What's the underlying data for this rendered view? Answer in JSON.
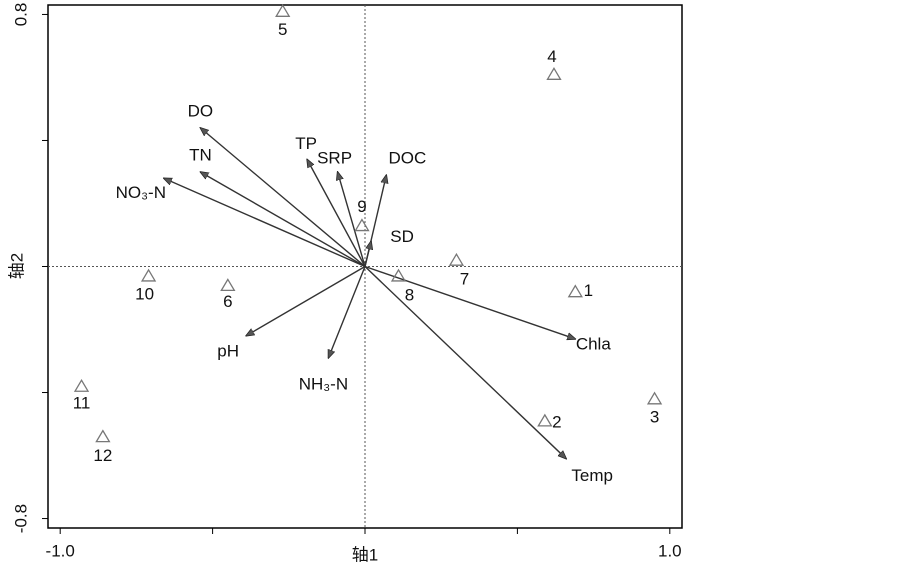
{
  "chart_data": {
    "type": "biplot",
    "xlabel": "轴1",
    "ylabel": "轴2",
    "xlim": [
      -1.04,
      1.04
    ],
    "ylim": [
      -0.83,
      0.83
    ],
    "xticks": [
      {
        "value": -1,
        "label": "-1.0"
      },
      {
        "value": 1,
        "label": "1.0"
      }
    ],
    "yticks": [
      {
        "value": 0.8,
        "label": "0.8"
      },
      {
        "value": -0.8,
        "label": "-0.8"
      }
    ],
    "xminor_ticks": [
      -0.5,
      0,
      0.5
    ],
    "yminor_ticks": [
      0.4,
      0,
      -0.4
    ],
    "arrow_color": "#333333",
    "site_color": "#777777",
    "arrows": [
      {
        "name": "DO",
        "x": -0.54,
        "y": 0.44
      },
      {
        "name": "TN",
        "x": -0.54,
        "y": 0.3
      },
      {
        "name": "NO₃-N",
        "x": -0.66,
        "y": 0.28
      },
      {
        "name": "TP",
        "x": -0.19,
        "y": 0.34
      },
      {
        "name": "SRP",
        "x": -0.09,
        "y": 0.3
      },
      {
        "name": "DOC",
        "x": 0.07,
        "y": 0.29
      },
      {
        "name": "SD",
        "x": 0.02,
        "y": 0.08
      },
      {
        "name": "Chla",
        "x": 0.69,
        "y": -0.23
      },
      {
        "name": "Temp",
        "x": 0.66,
        "y": -0.61
      },
      {
        "name": "pH",
        "x": -0.39,
        "y": -0.22
      },
      {
        "name": "NH₃-N",
        "x": -0.12,
        "y": -0.29
      }
    ],
    "sites": [
      {
        "name": "1",
        "x": 0.69,
        "y": -0.08
      },
      {
        "name": "2",
        "x": 0.59,
        "y": -0.49
      },
      {
        "name": "3",
        "x": 0.95,
        "y": -0.42
      },
      {
        "name": "4",
        "x": 0.62,
        "y": 0.61
      },
      {
        "name": "5",
        "x": -0.27,
        "y": 0.81
      },
      {
        "name": "6",
        "x": -0.45,
        "y": -0.06
      },
      {
        "name": "7",
        "x": 0.3,
        "y": 0.02
      },
      {
        "name": "8",
        "x": 0.11,
        "y": -0.03
      },
      {
        "name": "9",
        "x": -0.01,
        "y": 0.13
      },
      {
        "name": "10",
        "x": -0.71,
        "y": -0.03
      },
      {
        "name": "11",
        "x": -0.93,
        "y": -0.38
      },
      {
        "name": "12",
        "x": -0.86,
        "y": -0.54
      }
    ]
  }
}
